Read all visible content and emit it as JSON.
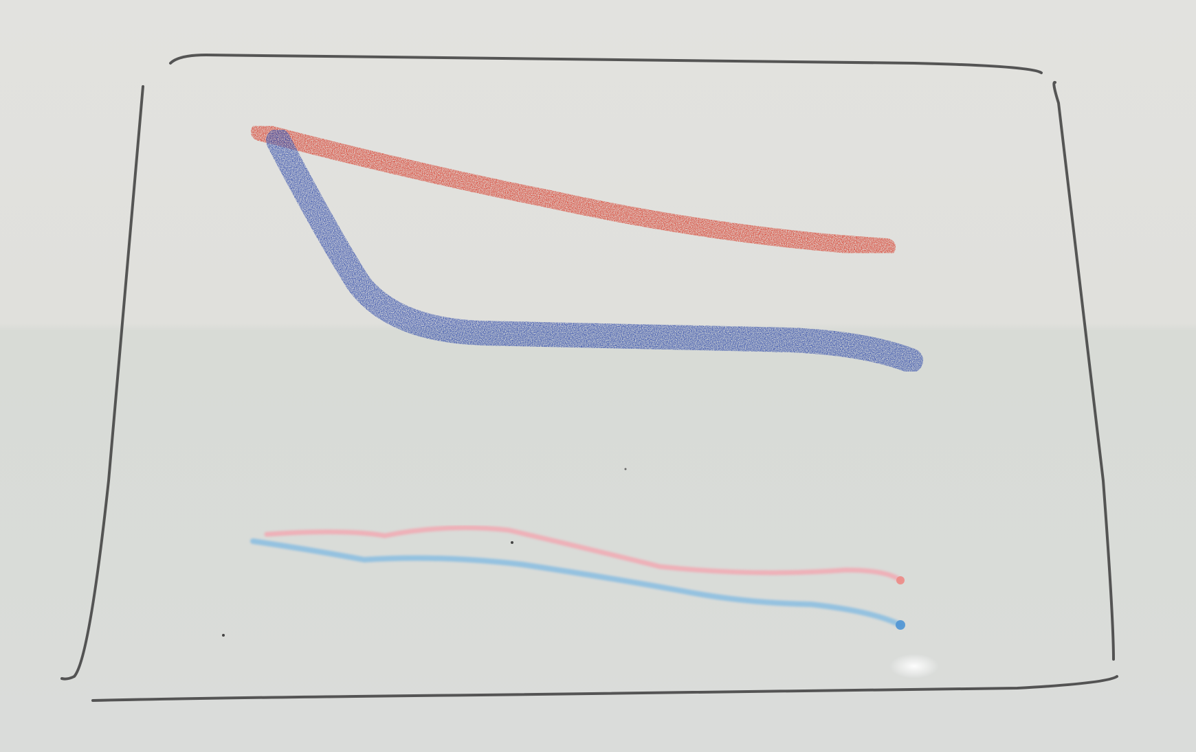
{
  "scene": {
    "description_free": true,
    "colors": {
      "wall": "#e1e1de",
      "table": "#dcdfdb",
      "paper": "#dfe1de",
      "frame_ink": "#3a3a3a",
      "red_crayon": "#d94332",
      "blue_crayon": "#3a52b0",
      "pink_marker": "#f0a8b0",
      "light_blue_marker": "#8ebfe0"
    }
  }
}
